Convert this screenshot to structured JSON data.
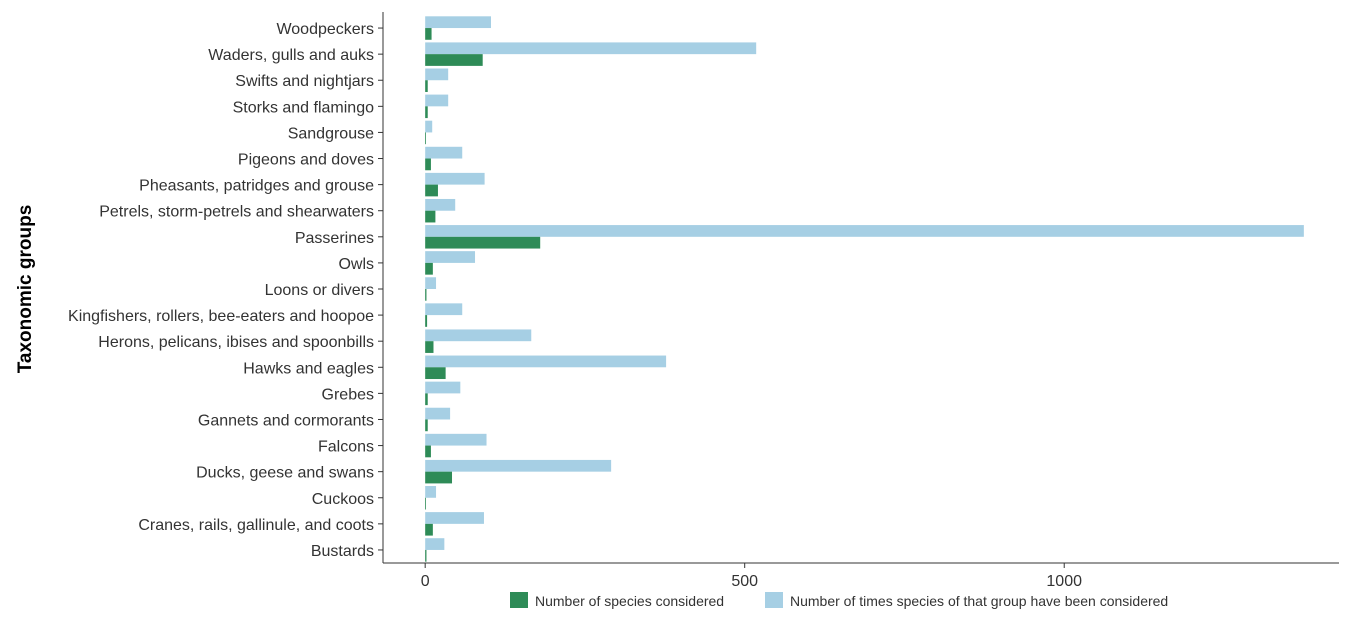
{
  "chart_data": {
    "type": "bar",
    "orientation": "horizontal",
    "title": "",
    "xlabel": "",
    "ylabel": "Taxonomic groups",
    "categories": [
      "Woodpeckers",
      "Waders, gulls and auks",
      "Swifts and nightjars",
      "Storks and flamingo",
      "Sandgrouse",
      "Pigeons and doves",
      "Pheasants, patridges and grouse",
      "Petrels, storm-petrels and shearwaters",
      "Passerines",
      "Owls",
      "Loons or divers",
      "Kingfishers, rollers, bee-eaters and hoopoe",
      "Herons, pelicans, ibises and spoonbills",
      "Hawks and eagles",
      "Grebes",
      "Gannets and cormorants",
      "Falcons",
      "Ducks, geese and swans",
      "Cuckoos",
      "Cranes, rails, gallinule, and coots",
      "Bustards"
    ],
    "series": [
      {
        "name": "Number of species considered",
        "color": "#2e8b57",
        "values": [
          10,
          90,
          4,
          4,
          1,
          9,
          20,
          16,
          180,
          12,
          2,
          3,
          13,
          32,
          4,
          4,
          9,
          42,
          1,
          12,
          2
        ]
      },
      {
        "name": "Number of times species of that group have been considered",
        "color": "#a6cfe4",
        "values": [
          103,
          518,
          36,
          36,
          11,
          58,
          93,
          47,
          1375,
          78,
          17,
          58,
          166,
          377,
          55,
          39,
          96,
          291,
          17,
          92,
          30
        ]
      }
    ],
    "xlim": [
      -66,
      1430
    ],
    "x_ticks": [
      0,
      500,
      1000
    ],
    "x_tick_labels": [
      "0",
      "500",
      "1000"
    ],
    "grid": false,
    "legend_position": "bottom"
  }
}
